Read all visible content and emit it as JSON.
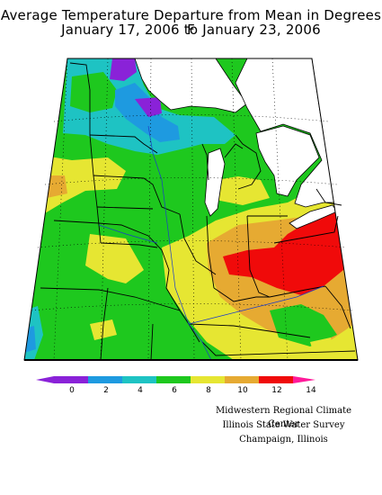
{
  "title": "Average Temperature Departure from Mean in Degrees F",
  "subtitle": "January 17, 2006 to January 23, 2006",
  "colors": {
    "0": "#8a22d8",
    "2": "#1e9ae0",
    "4": "#1ec3c3",
    "6": "#1ec81e",
    "8": "#e6e632",
    "10": "#e6aa32",
    "12": "#f00a0a",
    "14": "#ff1a9a"
  },
  "legend": {
    "ticks": [
      "0",
      "2",
      "4",
      "6",
      "8",
      "10",
      "12",
      "14"
    ]
  },
  "credits": {
    "line1": "Midwestern Regional Climate Center",
    "line2": "Illinois State Water Survey",
    "line3": "Champaign, Illinois"
  }
}
